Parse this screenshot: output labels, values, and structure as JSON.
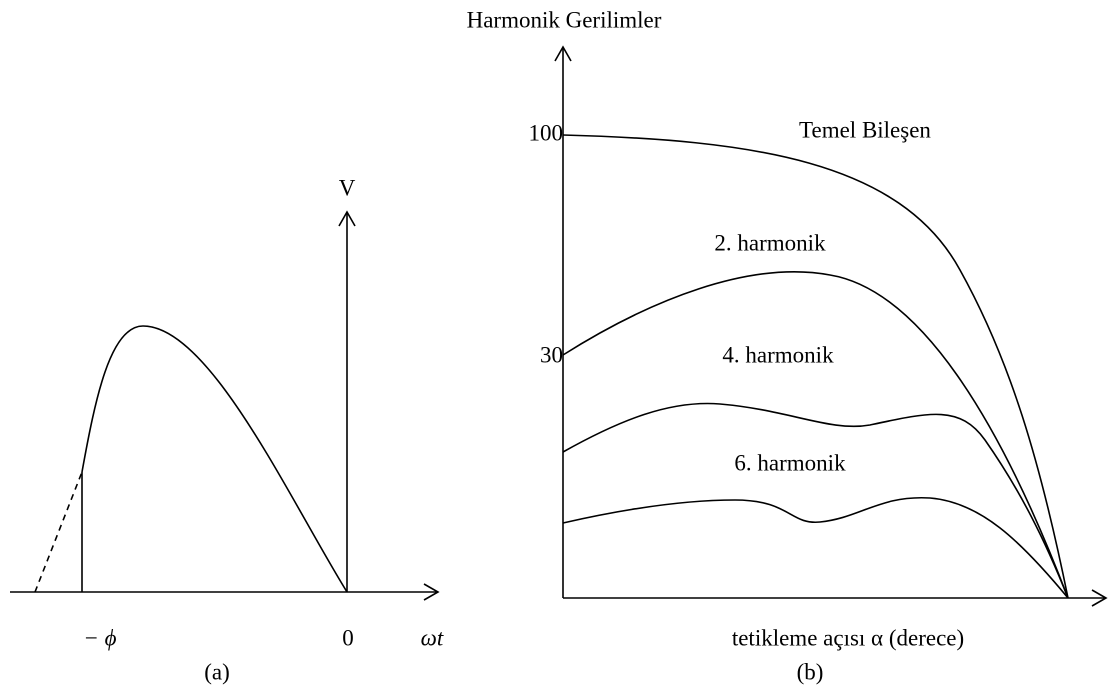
{
  "panel_a": {
    "axis_v": "V",
    "phase": "− ϕ",
    "origin": "0",
    "axis_x": "ωt",
    "caption": "(a)"
  },
  "panel_b": {
    "title": "Harmonik Gerilimler",
    "tick_100": "100",
    "tick_30": "30",
    "curves": [
      "Temel Bileşen",
      "2. harmonik",
      "4. harmonik",
      "6. harmonik"
    ],
    "x_label": "tetikleme açısı α (derece)",
    "caption": "(b)"
  }
}
